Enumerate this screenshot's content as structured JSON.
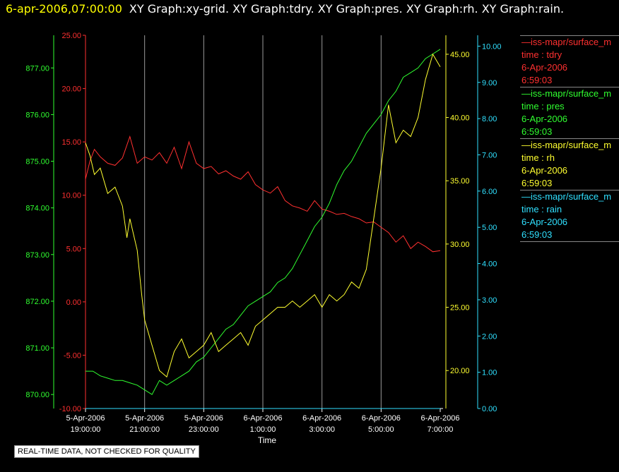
{
  "header": {
    "timestamp": "6-apr-2006,07:00:00",
    "title": "XY Graph:xy-grid.  XY Graph:tdry.  XY Graph:pres.  XY Graph:rh.  XY Graph:rain."
  },
  "notice": "REAL-TIME DATA, NOT CHECKED FOR QUALITY",
  "legend": [
    {
      "name": "iss-mapr/surface_m",
      "label": "time : tdry",
      "date": "6-Apr-2006",
      "time": "6:59:03",
      "color": "#ff3030"
    },
    {
      "name": "iss-mapr/surface_m",
      "label": "time : pres",
      "date": "6-Apr-2006",
      "time": "6:59:03",
      "color": "#30ff30"
    },
    {
      "name": "iss-mapr/surface_m",
      "label": "time : rh",
      "date": "6-Apr-2006",
      "time": "6:59:03",
      "color": "#ffff30"
    },
    {
      "name": "iss-mapr/surface_m",
      "label": "time : rain",
      "date": "6-Apr-2006",
      "time": "6:59:03",
      "color": "#30e0ff"
    }
  ],
  "chart_data": {
    "type": "line",
    "xlabel": "Time",
    "xlim": [
      "2006-04-05 19:00:00",
      "2006-04-06 07:00:00"
    ],
    "x_ticks": [
      {
        "date": "5-Apr-2006",
        "time": "19:00:00"
      },
      {
        "date": "5-Apr-2006",
        "time": "21:00:00"
      },
      {
        "date": "5-Apr-2006",
        "time": "23:00:00"
      },
      {
        "date": "6-Apr-2006",
        "time": "1:00:00"
      },
      {
        "date": "6-Apr-2006",
        "time": "3:00:00"
      },
      {
        "date": "6-Apr-2006",
        "time": "5:00:00"
      },
      {
        "date": "6-Apr-2006",
        "time": "7:00:00"
      }
    ],
    "grid": "vertical",
    "axes": [
      {
        "id": "tdry",
        "color": "#ff3030",
        "lim": [
          -10,
          25
        ],
        "ticks": [
          "-10.00",
          "-5.00",
          "0.00",
          "5.00",
          "10.00",
          "15.00",
          "20.00",
          "25.00"
        ]
      },
      {
        "id": "pres",
        "color": "#30ff30",
        "lim": [
          869.7,
          877.7
        ],
        "ticks": [
          "870.00",
          "871.00",
          "872.00",
          "873.00",
          "874.00",
          "875.00",
          "876.00",
          "877.00"
        ]
      },
      {
        "id": "rh",
        "color": "#ffff30",
        "lim": [
          17,
          46.5
        ],
        "ticks": [
          "20.00",
          "25.00",
          "30.00",
          "35.00",
          "40.00",
          "45.00"
        ]
      },
      {
        "id": "rain",
        "color": "#30e0ff",
        "lim": [
          0,
          10.3
        ],
        "ticks": [
          "0.00",
          "1.00",
          "2.00",
          "3.00",
          "4.00",
          "5.00",
          "6.00",
          "7.00",
          "8.00",
          "9.00",
          "10.00"
        ]
      }
    ],
    "series": [
      {
        "axis": "tdry",
        "color": "#ff3030",
        "name": "time : tdry",
        "x": [
          0,
          0.15,
          0.3,
          0.5,
          0.75,
          1,
          1.25,
          1.5,
          1.75,
          2,
          2.25,
          2.5,
          2.75,
          3,
          3.25,
          3.5,
          3.75,
          4,
          4.25,
          4.5,
          4.75,
          5,
          5.25,
          5.5,
          5.75,
          6,
          6.25,
          6.5,
          6.75,
          7,
          7.25,
          7.5,
          7.75,
          8,
          8.25,
          8.5,
          8.75,
          9,
          9.25,
          9.5,
          9.75,
          10,
          10.25,
          10.5,
          10.75,
          11,
          11.25,
          11.5,
          11.75,
          12
        ],
        "y": [
          11.5,
          13.2,
          14.3,
          13.6,
          13.0,
          12.8,
          13.5,
          15.5,
          13.0,
          13.6,
          13.3,
          14.0,
          13.0,
          14.5,
          12.5,
          15.0,
          13.0,
          12.5,
          12.7,
          12.0,
          12.3,
          11.8,
          11.5,
          12.2,
          11.0,
          10.5,
          10.2,
          10.8,
          9.5,
          9.0,
          8.8,
          8.5,
          9.5,
          8.7,
          8.5,
          8.2,
          8.3,
          8.0,
          7.8,
          7.4,
          7.5,
          7.0,
          6.5,
          5.6,
          6.2,
          5.0,
          5.6,
          5.2,
          4.7,
          4.8
        ]
      },
      {
        "axis": "pres",
        "color": "#30ff30",
        "name": "time : pres",
        "x": [
          0,
          0.25,
          0.5,
          0.75,
          1,
          1.25,
          1.5,
          1.75,
          2,
          2.25,
          2.5,
          2.75,
          3,
          3.25,
          3.5,
          3.75,
          4,
          4.25,
          4.5,
          4.75,
          5,
          5.25,
          5.5,
          5.75,
          6,
          6.25,
          6.5,
          6.75,
          7,
          7.25,
          7.5,
          7.75,
          8,
          8.25,
          8.5,
          8.75,
          9,
          9.25,
          9.5,
          9.75,
          10,
          10.25,
          10.5,
          10.75,
          11,
          11.25,
          11.5,
          11.75,
          12
        ],
        "y": [
          870.5,
          870.5,
          870.4,
          870.35,
          870.3,
          870.3,
          870.25,
          870.2,
          870.1,
          870.0,
          870.3,
          870.2,
          870.3,
          870.4,
          870.5,
          870.7,
          870.8,
          871.0,
          871.2,
          871.4,
          871.5,
          871.7,
          871.9,
          872.0,
          872.1,
          872.2,
          872.4,
          872.5,
          872.7,
          873.0,
          873.3,
          873.6,
          873.8,
          874.1,
          874.5,
          874.8,
          875.0,
          875.3,
          875.6,
          875.8,
          876.0,
          876.3,
          876.5,
          876.8,
          876.9,
          877.0,
          877.2,
          877.3,
          877.4
        ]
      },
      {
        "axis": "rh",
        "color": "#ffff30",
        "name": "time : rh",
        "x": [
          0,
          0.15,
          0.3,
          0.5,
          0.75,
          1,
          1.25,
          1.4,
          1.5,
          1.75,
          1.9,
          2,
          2.25,
          2.5,
          2.75,
          3,
          3.25,
          3.5,
          3.75,
          4,
          4.25,
          4.5,
          4.75,
          5,
          5.25,
          5.5,
          5.75,
          6,
          6.25,
          6.5,
          6.75,
          7,
          7.25,
          7.5,
          7.75,
          8,
          8.25,
          8.5,
          8.75,
          9,
          9.25,
          9.5,
          9.75,
          10,
          10.25,
          10.5,
          10.75,
          11,
          11.25,
          11.5,
          11.75,
          12
        ],
        "y": [
          38.0,
          37.0,
          35.5,
          36.0,
          34.0,
          34.5,
          33.0,
          30.5,
          32.0,
          29.5,
          26.0,
          24.0,
          22.0,
          20.0,
          19.5,
          21.5,
          22.5,
          21.0,
          21.5,
          22.0,
          23.0,
          21.5,
          22.0,
          22.5,
          23.0,
          22.0,
          23.5,
          24.0,
          24.5,
          25.0,
          25.0,
          25.5,
          25.0,
          25.5,
          26.0,
          25.0,
          26.0,
          25.5,
          26.0,
          27.0,
          26.5,
          28.0,
          32.0,
          36.0,
          41.0,
          38.0,
          39.0,
          38.5,
          40.0,
          43.0,
          45.0,
          44.0
        ]
      },
      {
        "axis": "rain",
        "color": "#30e0ff",
        "name": "time : rain",
        "x": [
          0,
          12
        ],
        "y": [
          0,
          0
        ]
      }
    ]
  }
}
